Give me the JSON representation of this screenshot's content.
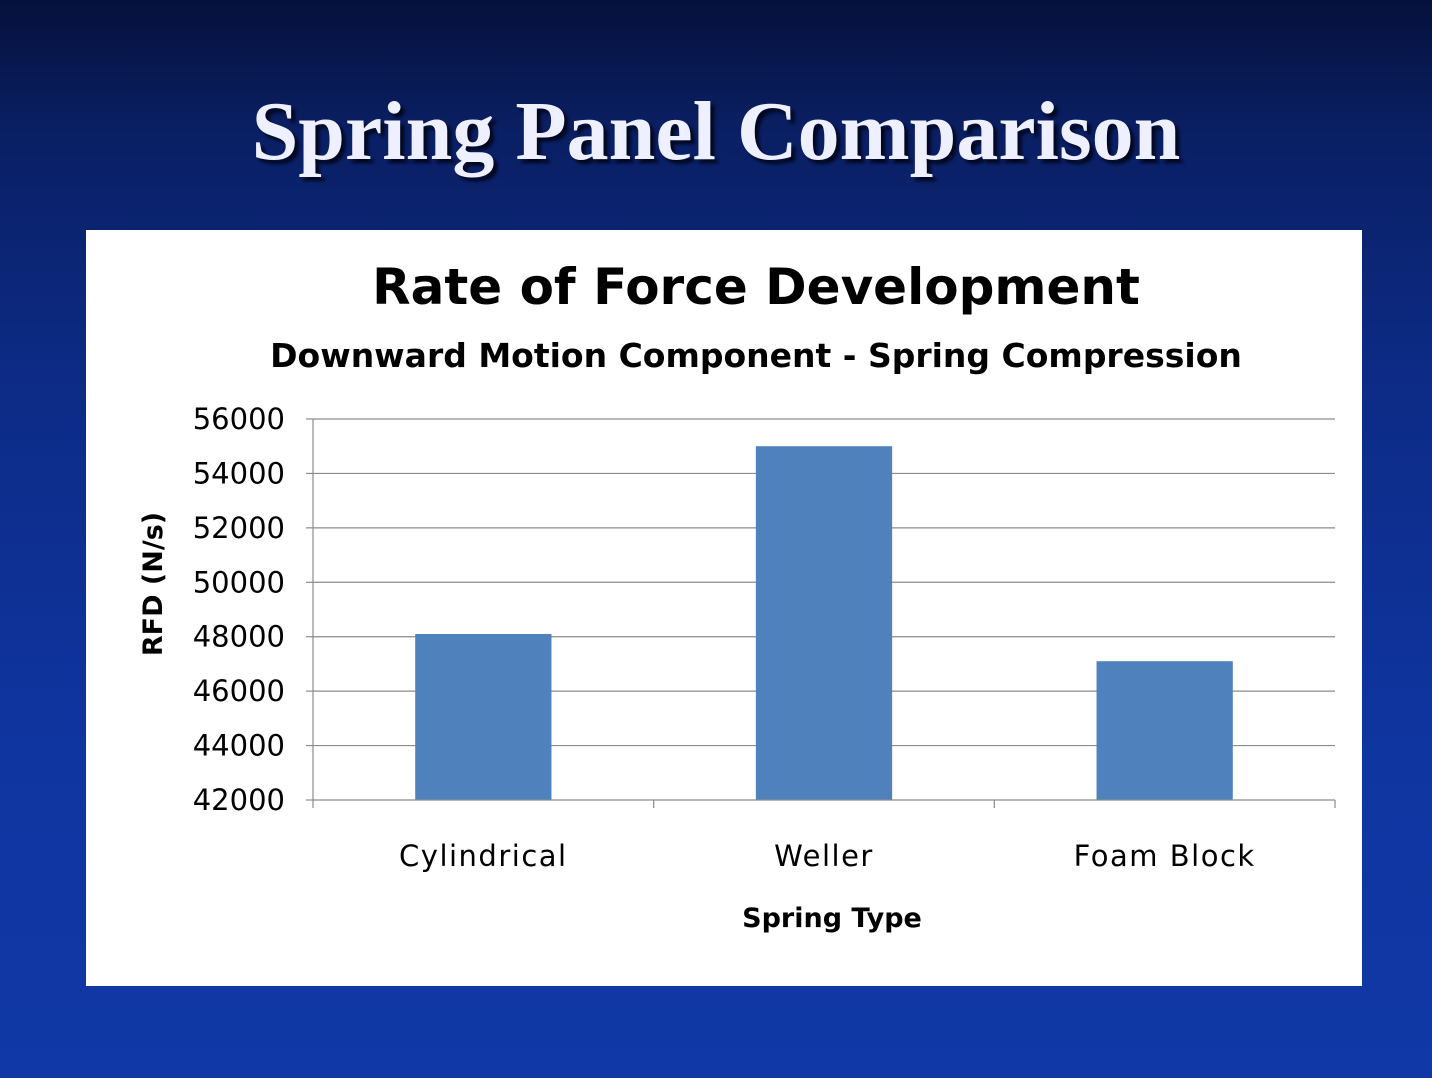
{
  "slide": {
    "title": "Spring Panel Comparison"
  },
  "chart_data": {
    "type": "bar",
    "title": "Rate of Force Development",
    "subtitle": "Downward Motion Component - Spring Compression",
    "xlabel": "Spring Type",
    "ylabel": "RFD (N/s)",
    "categories": [
      "Cylindrical",
      "Weller",
      "Foam Block"
    ],
    "values": [
      48100,
      55000,
      47100
    ],
    "ylim": [
      42000,
      56000
    ],
    "yticks": [
      "42000",
      "44000",
      "46000",
      "48000",
      "50000",
      "52000",
      "54000",
      "56000"
    ],
    "grid": true,
    "legend": "none",
    "bar_color": "#4f81bd"
  }
}
